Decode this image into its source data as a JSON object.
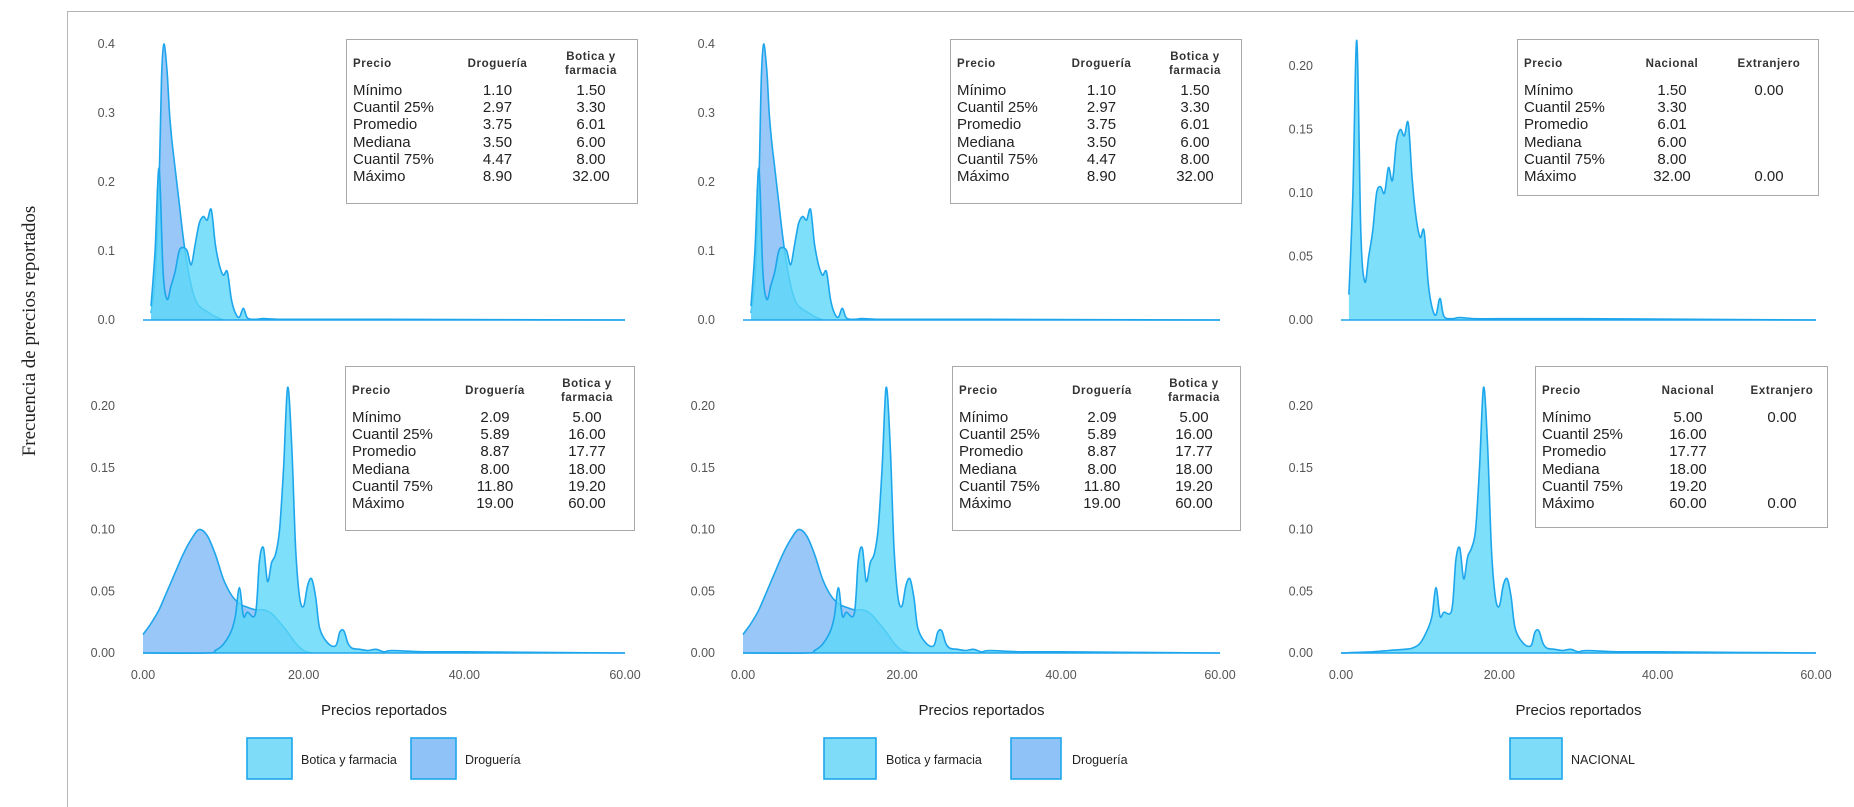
{
  "y_axis_title": "Frecuencia de precios reportados",
  "colors": {
    "botica": "#5dd7f7",
    "drogueria": "#76b4f5",
    "overlap": "#4fb0f1",
    "stroke": "#1ea6ec",
    "axis": "#c9c9c9"
  },
  "legends": [
    [
      {
        "label": "Botica y farmacia",
        "color": "#7fdcf9"
      },
      {
        "label": "Droguería",
        "color": "#8fc2f7"
      }
    ],
    [
      {
        "label": "Botica y farmacia",
        "color": "#7fdcf9"
      },
      {
        "label": "Droguería",
        "color": "#8fc2f7"
      }
    ],
    [
      {
        "label": "NACIONAL",
        "color": "#7fdcf9"
      }
    ]
  ],
  "chart_data": [
    {
      "type": "area",
      "xlabel": "",
      "ylim": [
        0,
        0.42
      ],
      "y_ticks": [
        "0.0",
        "0.1",
        "0.2",
        "0.3",
        "0.4"
      ],
      "x_ticks": [],
      "series": [
        {
          "name": "Droguería",
          "x": [
            1,
            1.5,
            2,
            2.3,
            2.6,
            3,
            3.3,
            3.6,
            4,
            4.5,
            5,
            5.5,
            6,
            6.5,
            7,
            8,
            9,
            10
          ],
          "y": [
            0.01,
            0.06,
            0.2,
            0.35,
            0.4,
            0.36,
            0.3,
            0.26,
            0.22,
            0.17,
            0.12,
            0.08,
            0.05,
            0.03,
            0.02,
            0.012,
            0.005,
            0
          ]
        },
        {
          "name": "Botica y farmacia",
          "x": [
            1,
            1.5,
            2,
            2.5,
            3,
            3.5,
            4,
            4.5,
            5,
            5.5,
            6,
            6.5,
            7,
            7.5,
            8,
            8.5,
            9,
            9.5,
            10,
            10.5,
            11,
            11.5,
            12,
            12.5,
            13,
            14,
            15,
            17,
            20,
            30,
            60
          ],
          "y": [
            0.02,
            0.1,
            0.22,
            0.07,
            0.03,
            0.05,
            0.07,
            0.1,
            0.105,
            0.1,
            0.08,
            0.11,
            0.14,
            0.15,
            0.145,
            0.16,
            0.11,
            0.08,
            0.065,
            0.07,
            0.03,
            0.01,
            0.004,
            0.017,
            0.003,
            0.001,
            0.002,
            0.001,
            0.001,
            0.001,
            0
          ]
        }
      ],
      "stats_table": {
        "headers": [
          "Precio",
          "Droguería",
          "Botica y\nfarmacia"
        ],
        "rows": [
          [
            "Mínimo",
            "1.10",
            "1.50"
          ],
          [
            "Cuantil 25%",
            "2.97",
            "3.30"
          ],
          [
            "Promedio",
            "3.75",
            "6.01"
          ],
          [
            "Mediana",
            "3.50",
            "6.00"
          ],
          [
            "Cuantil 75%",
            "4.47",
            "8.00"
          ],
          [
            "Máximo",
            "8.90",
            "32.00"
          ]
        ]
      }
    },
    {
      "type": "area",
      "xlabel": "",
      "ylim": [
        0,
        0.42
      ],
      "y_ticks": [
        "0.0",
        "0.1",
        "0.2",
        "0.3",
        "0.4"
      ],
      "x_ticks": [],
      "series": [
        {
          "name": "Droguería",
          "x": [
            1,
            1.5,
            2,
            2.3,
            2.6,
            3,
            3.3,
            3.6,
            4,
            4.5,
            5,
            5.5,
            6,
            6.5,
            7,
            8,
            9,
            10
          ],
          "y": [
            0.01,
            0.06,
            0.2,
            0.35,
            0.4,
            0.36,
            0.3,
            0.26,
            0.22,
            0.17,
            0.12,
            0.08,
            0.05,
            0.03,
            0.02,
            0.012,
            0.005,
            0
          ]
        },
        {
          "name": "Botica y farmacia",
          "x": [
            1,
            1.5,
            2,
            2.5,
            3,
            3.5,
            4,
            4.5,
            5,
            5.5,
            6,
            6.5,
            7,
            7.5,
            8,
            8.5,
            9,
            9.5,
            10,
            10.5,
            11,
            11.5,
            12,
            12.5,
            13,
            14,
            15,
            17,
            20,
            30,
            60
          ],
          "y": [
            0.02,
            0.1,
            0.22,
            0.07,
            0.03,
            0.05,
            0.07,
            0.1,
            0.105,
            0.1,
            0.08,
            0.11,
            0.14,
            0.15,
            0.145,
            0.16,
            0.11,
            0.08,
            0.065,
            0.07,
            0.03,
            0.01,
            0.004,
            0.017,
            0.003,
            0.001,
            0.002,
            0.001,
            0.001,
            0.001,
            0
          ]
        }
      ],
      "stats_table": {
        "headers": [
          "Precio",
          "Droguería",
          "Botica y\nfarmacia"
        ],
        "rows": [
          [
            "Mínimo",
            "1.10",
            "1.50"
          ],
          [
            "Cuantil 25%",
            "2.97",
            "3.30"
          ],
          [
            "Promedio",
            "3.75",
            "6.01"
          ],
          [
            "Mediana",
            "3.50",
            "6.00"
          ],
          [
            "Cuantil 75%",
            "4.47",
            "8.00"
          ],
          [
            "Máximo",
            "8.90",
            "32.00"
          ]
        ]
      }
    },
    {
      "type": "area",
      "xlabel": "",
      "ylim": [
        0,
        0.235
      ],
      "y_ticks": [
        "0.00",
        "0.05",
        "0.10",
        "0.15",
        "0.20"
      ],
      "x_ticks": [],
      "series": [
        {
          "name": "NACIONAL",
          "x": [
            1,
            1.5,
            2,
            2.5,
            3,
            3.5,
            4,
            4.5,
            5,
            5.5,
            6,
            6.5,
            7,
            7.5,
            8,
            8.5,
            9,
            9.5,
            10,
            10.5,
            11,
            11.5,
            12,
            12.5,
            13,
            14,
            15,
            17,
            20,
            30,
            60
          ],
          "y": [
            0.02,
            0.1,
            0.22,
            0.07,
            0.03,
            0.05,
            0.07,
            0.1,
            0.105,
            0.1,
            0.12,
            0.11,
            0.14,
            0.15,
            0.145,
            0.155,
            0.11,
            0.08,
            0.065,
            0.07,
            0.03,
            0.01,
            0.004,
            0.017,
            0.003,
            0.001,
            0.002,
            0.001,
            0.001,
            0.001,
            0
          ]
        }
      ],
      "stats_table": {
        "headers": [
          "Precio",
          "Nacional",
          "Extranjero"
        ],
        "rows": [
          [
            "Mínimo",
            "1.50",
            "0.00"
          ],
          [
            "Cuantil 25%",
            "3.30",
            ""
          ],
          [
            "Promedio",
            "6.01",
            ""
          ],
          [
            "Mediana",
            "6.00",
            ""
          ],
          [
            "Cuantil 75%",
            "8.00",
            ""
          ],
          [
            "Máximo",
            "32.00",
            "0.00"
          ]
        ]
      }
    },
    {
      "type": "area",
      "xlabel": "Precios reportados",
      "ylim": [
        0,
        0.235
      ],
      "y_ticks": [
        "0.00",
        "0.05",
        "0.10",
        "0.15",
        "0.20"
      ],
      "x_ticks": [
        "0.00",
        "20.00",
        "40.00",
        "60.00"
      ],
      "series": [
        {
          "name": "Droguería",
          "x": [
            0,
            1,
            2,
            3,
            4,
            5,
            6,
            7,
            8,
            9,
            10,
            11,
            12,
            13,
            14,
            15,
            16,
            17,
            18,
            19,
            20,
            21
          ],
          "y": [
            0.015,
            0.024,
            0.035,
            0.05,
            0.065,
            0.08,
            0.092,
            0.1,
            0.095,
            0.08,
            0.06,
            0.047,
            0.04,
            0.037,
            0.035,
            0.035,
            0.032,
            0.025,
            0.017,
            0.008,
            0.002,
            0
          ]
        },
        {
          "name": "Botica y farmacia",
          "x": [
            0,
            8,
            9,
            10,
            11,
            11.5,
            12,
            12.5,
            13,
            14,
            14.5,
            15,
            15.5,
            16,
            16.5,
            17,
            17.5,
            18,
            18.5,
            19,
            19.5,
            20,
            20.5,
            21,
            21.5,
            22,
            23,
            24,
            24.5,
            25,
            25.5,
            26,
            27,
            28,
            29,
            30,
            31,
            35,
            40,
            60
          ],
          "y": [
            0,
            0,
            0.002,
            0.007,
            0.018,
            0.03,
            0.053,
            0.03,
            0.033,
            0.032,
            0.075,
            0.085,
            0.058,
            0.073,
            0.08,
            0.1,
            0.15,
            0.215,
            0.17,
            0.085,
            0.045,
            0.038,
            0.055,
            0.06,
            0.045,
            0.02,
            0.008,
            0.006,
            0.017,
            0.018,
            0.008,
            0.004,
            0.003,
            0.002,
            0.003,
            0.001,
            0.002,
            0.001,
            0.001,
            0
          ]
        }
      ],
      "stats_table": {
        "headers": [
          "Precio",
          "Droguería",
          "Botica y\nfarmacia"
        ],
        "rows": [
          [
            "Mínimo",
            "2.09",
            "5.00"
          ],
          [
            "Cuantil 25%",
            "5.89",
            "16.00"
          ],
          [
            "Promedio",
            "8.87",
            "17.77"
          ],
          [
            "Mediana",
            "8.00",
            "18.00"
          ],
          [
            "Cuantil 75%",
            "11.80",
            "19.20"
          ],
          [
            "Máximo",
            "19.00",
            "60.00"
          ]
        ]
      }
    },
    {
      "type": "area",
      "xlabel": "Precios reportados",
      "ylim": [
        0,
        0.235
      ],
      "y_ticks": [
        "0.00",
        "0.05",
        "0.10",
        "0.15",
        "0.20"
      ],
      "x_ticks": [
        "0.00",
        "20.00",
        "40.00",
        "60.00"
      ],
      "series": [
        {
          "name": "Droguería",
          "x": [
            0,
            1,
            2,
            3,
            4,
            5,
            6,
            7,
            8,
            9,
            10,
            11,
            12,
            13,
            14,
            15,
            16,
            17,
            18,
            19,
            20,
            21
          ],
          "y": [
            0.015,
            0.024,
            0.035,
            0.05,
            0.065,
            0.08,
            0.092,
            0.1,
            0.095,
            0.08,
            0.06,
            0.047,
            0.04,
            0.037,
            0.035,
            0.035,
            0.032,
            0.025,
            0.017,
            0.008,
            0.002,
            0
          ]
        },
        {
          "name": "Botica y farmacia",
          "x": [
            0,
            8,
            9,
            10,
            11,
            11.5,
            12,
            12.5,
            13,
            14,
            14.5,
            15,
            15.5,
            16,
            16.5,
            17,
            17.5,
            18,
            18.5,
            19,
            19.5,
            20,
            20.5,
            21,
            21.5,
            22,
            23,
            24,
            24.5,
            25,
            25.5,
            26,
            27,
            28,
            29,
            30,
            31,
            35,
            40,
            60
          ],
          "y": [
            0,
            0,
            0.002,
            0.007,
            0.018,
            0.03,
            0.053,
            0.03,
            0.033,
            0.032,
            0.075,
            0.085,
            0.058,
            0.073,
            0.08,
            0.1,
            0.15,
            0.215,
            0.17,
            0.085,
            0.045,
            0.038,
            0.055,
            0.06,
            0.045,
            0.02,
            0.008,
            0.006,
            0.017,
            0.018,
            0.008,
            0.004,
            0.003,
            0.002,
            0.003,
            0.001,
            0.002,
            0.001,
            0.001,
            0
          ]
        }
      ],
      "stats_table": {
        "headers": [
          "Precio",
          "Droguería",
          "Botica y\nfarmacia"
        ],
        "rows": [
          [
            "Mínimo",
            "2.09",
            "5.00"
          ],
          [
            "Cuantil 25%",
            "5.89",
            "16.00"
          ],
          [
            "Promedio",
            "8.87",
            "17.77"
          ],
          [
            "Mediana",
            "8.00",
            "18.00"
          ],
          [
            "Cuantil 75%",
            "11.80",
            "19.20"
          ],
          [
            "Máximo",
            "19.00",
            "60.00"
          ]
        ]
      }
    },
    {
      "type": "area",
      "xlabel": "Precios reportados",
      "ylim": [
        0,
        0.235
      ],
      "y_ticks": [
        "0.00",
        "0.05",
        "0.10",
        "0.15",
        "0.20"
      ],
      "x_ticks": [
        "0.00",
        "20.00",
        "40.00",
        "60.00"
      ],
      "series": [
        {
          "name": "NACIONAL",
          "x": [
            0,
            4,
            6,
            8,
            9,
            10,
            11,
            11.5,
            12,
            12.5,
            13,
            14,
            14.5,
            15,
            15.5,
            16,
            16.5,
            17,
            17.5,
            18,
            18.5,
            19,
            19.5,
            20,
            20.5,
            21,
            21.5,
            22,
            23,
            24,
            24.5,
            25,
            25.5,
            26,
            27,
            28,
            29,
            30,
            31,
            35,
            40,
            60
          ],
          "y": [
            0,
            0.001,
            0.002,
            0.003,
            0.004,
            0.008,
            0.02,
            0.03,
            0.053,
            0.03,
            0.033,
            0.035,
            0.075,
            0.085,
            0.06,
            0.078,
            0.085,
            0.1,
            0.15,
            0.215,
            0.17,
            0.085,
            0.045,
            0.038,
            0.055,
            0.06,
            0.045,
            0.02,
            0.008,
            0.006,
            0.017,
            0.018,
            0.008,
            0.004,
            0.003,
            0.002,
            0.003,
            0.001,
            0.002,
            0.001,
            0.001,
            0
          ]
        }
      ],
      "stats_table": {
        "headers": [
          "Precio",
          "Nacional",
          "Extranjero"
        ],
        "rows": [
          [
            "Mínimo",
            "5.00",
            "0.00"
          ],
          [
            "Cuantil 25%",
            "16.00",
            ""
          ],
          [
            "Promedio",
            "17.77",
            ""
          ],
          [
            "Mediana",
            "18.00",
            ""
          ],
          [
            "Cuantil 75%",
            "19.20",
            ""
          ],
          [
            "Máximo",
            "60.00",
            "0.00"
          ]
        ]
      }
    }
  ]
}
